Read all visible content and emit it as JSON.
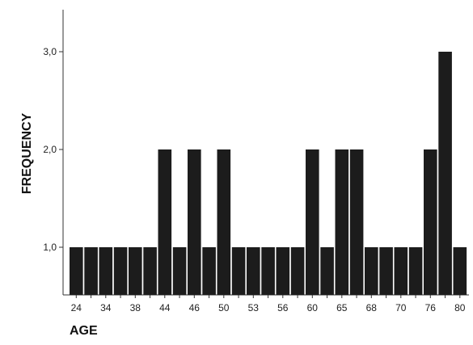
{
  "chart_data": {
    "type": "bar",
    "xlabel": "AGE",
    "ylabel": "FREQUENCY",
    "ylim": [
      0.6,
      3.4
    ],
    "yticks": [
      "1,0",
      "2,0",
      "3,0"
    ],
    "ytick_values": [
      1,
      2,
      3
    ],
    "bar_color": "#1c1c1c",
    "categories": [
      "24",
      "",
      "34",
      "",
      "38",
      "",
      "44",
      "",
      "46",
      "",
      "50",
      "",
      "53",
      "",
      "56",
      "",
      "60",
      "",
      "65",
      "",
      "68",
      "",
      "70",
      "",
      "76",
      "",
      "80"
    ],
    "values": [
      1,
      1,
      1,
      1,
      1,
      1,
      2,
      1,
      2,
      1,
      2,
      1,
      1,
      1,
      1,
      1,
      2,
      1,
      2,
      2,
      1,
      1,
      1,
      1,
      2,
      3,
      1
    ],
    "grid": false
  }
}
